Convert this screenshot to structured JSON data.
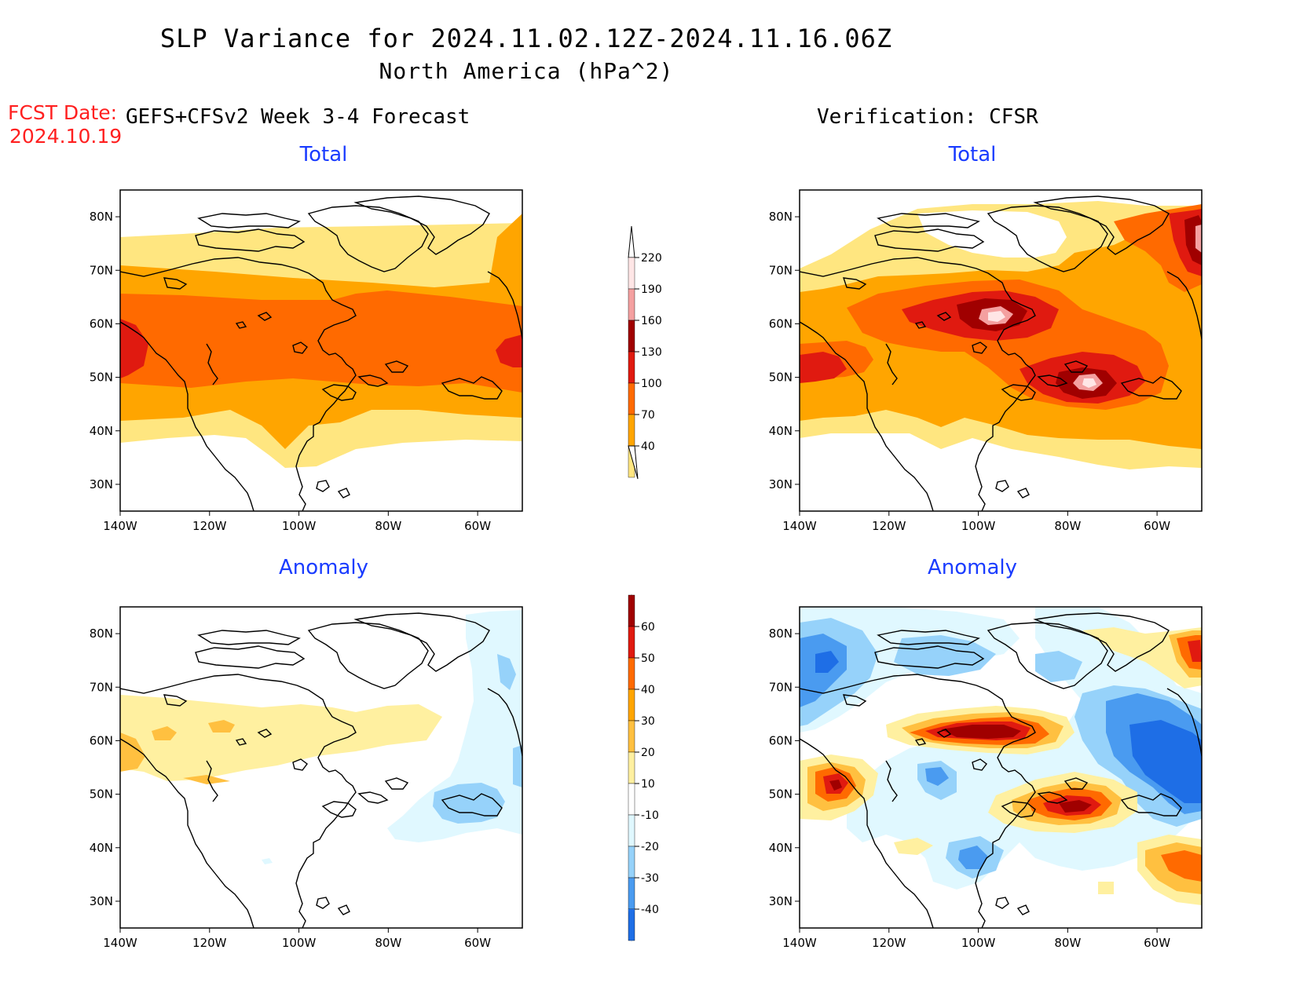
{
  "title": "SLP Variance for 2024.11.02.12Z-2024.11.16.06Z",
  "subtitle": "North America (hPa^2)",
  "fcst_date_label": "FCST Date:",
  "fcst_date_value": "2024.10.19",
  "left_column_title": "GEFS+CFSv2 Week 3-4 Forecast",
  "right_column_title": "Verification: CFSR",
  "panels": [
    {
      "id": "fcst-total",
      "title": "Total"
    },
    {
      "id": "cfsr-total",
      "title": "Total"
    },
    {
      "id": "fcst-anomaly",
      "title": "Anomaly"
    },
    {
      "id": "cfsr-anomaly",
      "title": "Anomaly"
    }
  ],
  "axes": {
    "lat_ticks": [
      "80N",
      "70N",
      "60N",
      "50N",
      "40N",
      "30N"
    ],
    "lon_ticks": [
      "140W",
      "120W",
      "100W",
      "80W",
      "60W"
    ],
    "lat_range": [
      25,
      85
    ],
    "lon_range": [
      -140,
      -50
    ]
  },
  "colorbars": {
    "total": {
      "labels": [
        "220",
        "190",
        "160",
        "130",
        "100",
        "70",
        "40"
      ],
      "colors": [
        "#ffe6e6",
        "#f4a0a0",
        "#a00000",
        "#e01a10",
        "#ff6a00",
        "#ffa500",
        "#ffe680"
      ]
    },
    "anomaly": {
      "labels": [
        "60",
        "50",
        "40",
        "30",
        "20",
        "10",
        "-10",
        "-20",
        "-30",
        "-40"
      ],
      "colors": [
        "#a00000",
        "#e01a10",
        "#ff6a00",
        "#ffa500",
        "#ffc040",
        "#fff0a0",
        "#ffffff",
        "#e0f8ff",
        "#96d2fa",
        "#4a9bf0",
        "#1e6ee6"
      ]
    }
  }
}
